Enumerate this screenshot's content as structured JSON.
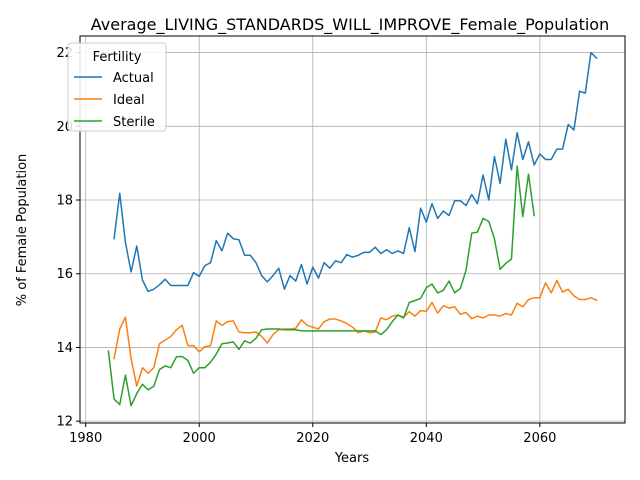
{
  "chart_data": {
    "type": "line",
    "title": "Average_LIVING_STANDARDS_WILL_IMPROVE_Female_Population",
    "xlabel": "Years",
    "ylabel": "% of Female Population",
    "xlim": [
      1979,
      2075
    ],
    "ylim": [
      11.95,
      22.45
    ],
    "xticks": [
      1980,
      2000,
      2020,
      2040,
      2060
    ],
    "yticks": [
      12,
      14,
      16,
      18,
      20,
      22
    ],
    "grid": true,
    "legend": {
      "title": "Fertility",
      "position": "upper-left"
    },
    "series": [
      {
        "name": "Actual",
        "color": "#1f77b4",
        "x": [
          1985,
          1986,
          1987,
          1988,
          1989,
          1990,
          1991,
          1992,
          1993,
          1994,
          1995,
          1996,
          1997,
          1998,
          1999,
          2000,
          2001,
          2002,
          2003,
          2004,
          2005,
          2006,
          2007,
          2008,
          2009,
          2010,
          2011,
          2012,
          2013,
          2014,
          2015,
          2016,
          2017,
          2018,
          2019,
          2020,
          2021,
          2022,
          2023,
          2024,
          2025,
          2026,
          2027,
          2028,
          2029,
          2030,
          2031,
          2032,
          2033,
          2034,
          2035,
          2036,
          2037,
          2038,
          2039,
          2040,
          2041,
          2042,
          2043,
          2044,
          2045,
          2046,
          2047,
          2048,
          2049,
          2050,
          2051,
          2052,
          2053,
          2054,
          2055,
          2056,
          2057,
          2058,
          2059,
          2060,
          2061,
          2062,
          2063,
          2064,
          2065,
          2066,
          2067,
          2068,
          2069,
          2070
        ],
        "values": [
          16.95,
          18.18,
          16.85,
          16.05,
          16.75,
          15.83,
          15.52,
          15.58,
          15.7,
          15.85,
          15.68,
          15.68,
          15.68,
          15.68,
          16.03,
          15.93,
          16.22,
          16.3,
          16.9,
          16.62,
          17.1,
          16.95,
          16.92,
          16.5,
          16.5,
          16.3,
          15.95,
          15.78,
          15.95,
          16.15,
          15.58,
          15.95,
          15.8,
          16.25,
          15.72,
          16.18,
          15.88,
          16.3,
          16.15,
          16.35,
          16.3,
          16.52,
          16.45,
          16.5,
          16.58,
          16.58,
          16.72,
          16.55,
          16.65,
          16.55,
          16.62,
          16.55,
          17.25,
          16.6,
          17.78,
          17.4,
          17.9,
          17.5,
          17.7,
          17.58,
          17.98,
          17.98,
          17.85,
          18.15,
          17.9,
          18.68,
          18.0,
          19.18,
          18.45,
          19.65,
          18.82,
          19.83,
          19.1,
          19.58,
          18.95,
          19.25,
          19.1,
          19.1,
          19.38,
          19.38,
          20.05,
          19.9,
          20.95,
          20.9,
          22.0,
          21.85
        ]
      },
      {
        "name": "Ideal",
        "color": "#ff7f0e",
        "x": [
          1985,
          1986,
          1987,
          1988,
          1989,
          1990,
          1991,
          1992,
          1993,
          1994,
          1995,
          1996,
          1997,
          1998,
          1999,
          2000,
          2001,
          2002,
          2003,
          2004,
          2005,
          2006,
          2007,
          2008,
          2009,
          2010,
          2011,
          2012,
          2013,
          2014,
          2015,
          2016,
          2017,
          2018,
          2019,
          2020,
          2021,
          2022,
          2023,
          2024,
          2025,
          2026,
          2027,
          2028,
          2029,
          2030,
          2031,
          2032,
          2033,
          2034,
          2035,
          2036,
          2037,
          2038,
          2039,
          2040,
          2041,
          2042,
          2043,
          2044,
          2045,
          2046,
          2047,
          2048,
          2049,
          2050,
          2051,
          2052,
          2053,
          2054,
          2055,
          2056,
          2057,
          2058,
          2059,
          2060,
          2061,
          2062,
          2063,
          2064,
          2065,
          2066,
          2067,
          2068,
          2069,
          2070
        ],
        "values": [
          13.7,
          14.5,
          14.82,
          13.7,
          12.95,
          13.45,
          13.3,
          13.45,
          14.1,
          14.2,
          14.3,
          14.48,
          14.6,
          14.05,
          14.05,
          13.88,
          14.02,
          14.05,
          14.72,
          14.6,
          14.7,
          14.72,
          14.42,
          14.4,
          14.4,
          14.42,
          14.3,
          14.12,
          14.35,
          14.48,
          14.5,
          14.5,
          14.52,
          14.75,
          14.6,
          14.55,
          14.5,
          14.7,
          14.77,
          14.77,
          14.72,
          14.65,
          14.55,
          14.4,
          14.45,
          14.4,
          14.42,
          14.8,
          14.75,
          14.85,
          14.88,
          14.82,
          14.97,
          14.85,
          15.0,
          14.98,
          15.22,
          14.93,
          15.13,
          15.07,
          15.1,
          14.9,
          14.95,
          14.78,
          14.85,
          14.8,
          14.88,
          14.88,
          14.85,
          14.92,
          14.88,
          15.2,
          15.1,
          15.3,
          15.35,
          15.35,
          15.75,
          15.48,
          15.82,
          15.5,
          15.58,
          15.4,
          15.3,
          15.3,
          15.35,
          15.28
        ]
      },
      {
        "name": "Sterile",
        "color": "#2ca02c",
        "x": [
          1984,
          1985,
          1986,
          1987,
          1988,
          1989,
          1990,
          1991,
          1992,
          1993,
          1994,
          1995,
          1996,
          1997,
          1998,
          1999,
          2000,
          2001,
          2002,
          2003,
          2004,
          2005,
          2006,
          2007,
          2008,
          2009,
          2010,
          2011,
          2012,
          2013,
          2014,
          2015,
          2016,
          2017,
          2018,
          2019,
          2020,
          2021,
          2022,
          2023,
          2024,
          2025,
          2026,
          2027,
          2028,
          2029,
          2030,
          2031,
          2032,
          2033,
          2034,
          2035,
          2036,
          2037,
          2038,
          2039,
          2040,
          2041,
          2042,
          2043,
          2044,
          2045,
          2046,
          2047,
          2048,
          2049,
          2050,
          2051,
          2052,
          2053,
          2054,
          2055,
          2056,
          2057,
          2058,
          2059
        ],
        "values": [
          13.9,
          12.6,
          12.45,
          13.25,
          12.42,
          12.75,
          13.0,
          12.85,
          12.95,
          13.4,
          13.5,
          13.45,
          13.75,
          13.75,
          13.65,
          13.3,
          13.45,
          13.45,
          13.6,
          13.82,
          14.1,
          14.12,
          14.15,
          13.95,
          14.18,
          14.12,
          14.25,
          14.48,
          14.5,
          14.5,
          14.5,
          14.48,
          14.48,
          14.48,
          14.45,
          14.45,
          14.45,
          14.45,
          14.45,
          14.45,
          14.45,
          14.45,
          14.45,
          14.45,
          14.45,
          14.45,
          14.45,
          14.45,
          14.35,
          14.48,
          14.7,
          14.88,
          14.8,
          15.22,
          15.27,
          15.33,
          15.62,
          15.72,
          15.48,
          15.55,
          15.8,
          15.48,
          15.6,
          16.1,
          17.1,
          17.13,
          17.5,
          17.42,
          16.95,
          16.12,
          16.28,
          16.4,
          18.92,
          17.55,
          18.7,
          17.58
        ]
      }
    ]
  }
}
